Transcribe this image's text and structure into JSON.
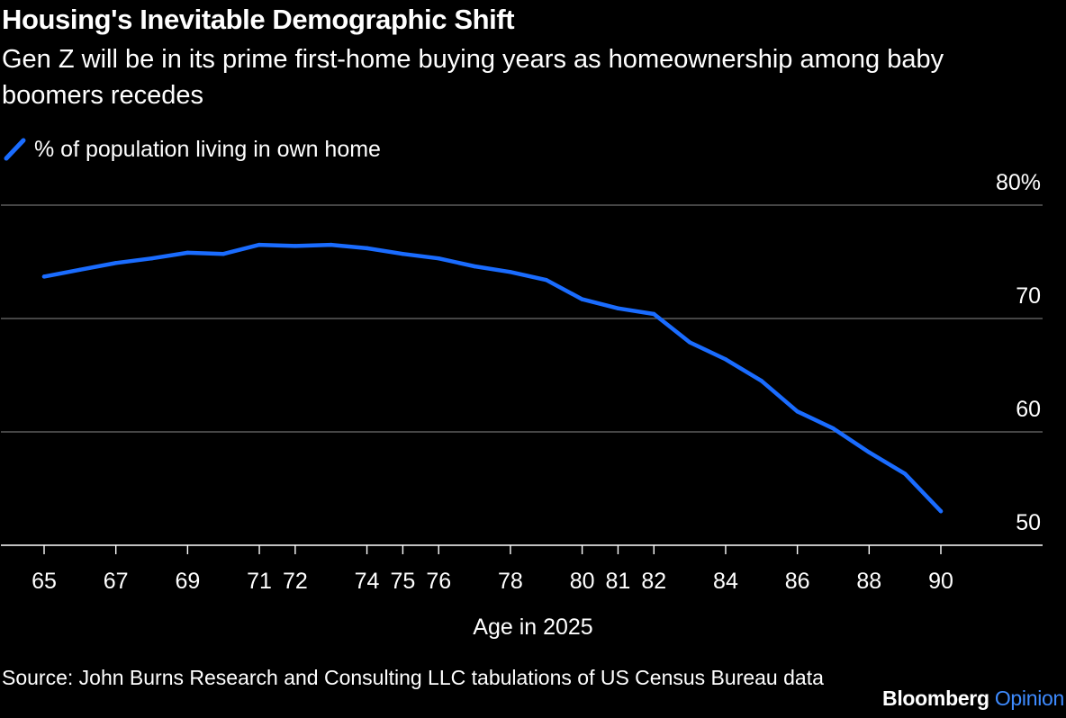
{
  "header": {
    "title": "Housing's Inevitable Demographic Shift",
    "subtitle": "Gen Z will be in its prime first-home buying years as homeownership among baby boomers recedes"
  },
  "footer": {
    "source": "Source: John Burns Research and Consulting LLC tabulations of US Census Bureau data",
    "brand_name": "Bloomberg",
    "brand_section": "Opinion"
  },
  "colors": {
    "background": "#000000",
    "text": "#ffffff",
    "series": "#1a6cff",
    "gridline": "#5c5c5c",
    "brand_accent": "#3e8bff"
  },
  "chart_data": {
    "type": "line",
    "xlabel": "Age in 2025",
    "ylabel": "",
    "y_tick_labels": [
      "80%",
      "70",
      "60",
      "50"
    ],
    "y_ticks": [
      80,
      70,
      60,
      50
    ],
    "ylim": [
      50,
      80
    ],
    "xlim": [
      65,
      90
    ],
    "x_tick_labels": [
      "65",
      "67",
      "69",
      "71",
      "72",
      "74",
      "75",
      "76",
      "78",
      "80",
      "81",
      "82",
      "84",
      "86",
      "88",
      "90"
    ],
    "x_ticks": [
      65,
      67,
      69,
      71,
      72,
      74,
      75,
      76,
      78,
      80,
      81,
      82,
      84,
      86,
      88,
      90
    ],
    "x_minor_ticks": [
      65,
      67,
      69,
      71,
      72,
      74,
      75,
      76,
      78,
      80,
      81,
      82,
      84,
      86,
      88,
      90
    ],
    "grid": true,
    "y_axis_side": "right",
    "legend_placement": "top-left",
    "series": [
      {
        "name": "% of population living in own home",
        "x": [
          65,
          66,
          67,
          68,
          69,
          70,
          71,
          72,
          73,
          74,
          75,
          76,
          77,
          78,
          79,
          80,
          81,
          82,
          83,
          84,
          85,
          86,
          87,
          88,
          89,
          90
        ],
        "values": [
          73.7,
          74.3,
          74.9,
          75.3,
          75.8,
          75.7,
          76.5,
          76.4,
          76.5,
          76.2,
          75.7,
          75.3,
          74.6,
          74.1,
          73.4,
          71.7,
          70.9,
          70.4,
          67.9,
          66.4,
          64.5,
          61.8,
          60.3,
          58.2,
          56.3,
          53.0
        ]
      }
    ]
  }
}
